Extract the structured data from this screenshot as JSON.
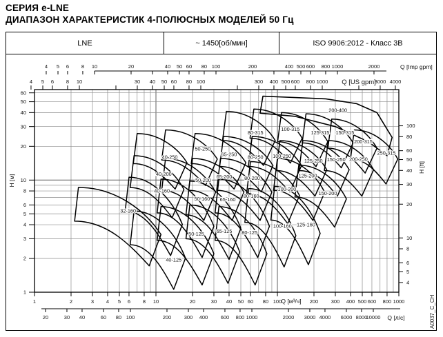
{
  "page": {
    "title_line1": "СЕРИЯ e-LNE",
    "title_line2": "ДИАПАЗОН ХАРАКТЕРИСТИК 4-ПОЛЮСНЫХ МОДЕЛЕЙ 50 Гц"
  },
  "header_table": {
    "series": "LNE",
    "speed": "~ 1450[об/мин]",
    "standard": "ISO 9906:2012 - Класс 3В"
  },
  "side_code": "A0037_C_CH",
  "chart_data": {
    "type": "area",
    "description": "Log-log composite range chart of pump model envelopes, H [м] vs Q [м³/ч]",
    "q_range": [
      1,
      1023
    ],
    "h_range": [
      1,
      64
    ],
    "grid": {
      "q_lines": [
        2,
        3,
        4,
        5,
        6,
        7,
        8,
        9,
        10,
        20,
        30,
        40,
        50,
        60,
        70,
        80,
        90,
        100,
        200,
        300,
        400,
        500,
        600,
        700,
        800,
        900,
        1000
      ],
      "h_lines": [
        2,
        3,
        4,
        5,
        6,
        7,
        8,
        9,
        10,
        20,
        30,
        40,
        50,
        60
      ]
    },
    "axes": {
      "q_imp": {
        "title": "Q [Imp gpm]",
        "labels": [
          4,
          5,
          6,
          8,
          10,
          20,
          40,
          50,
          60,
          80,
          100,
          200,
          400,
          500,
          600,
          800,
          1000,
          2000
        ],
        "unlabeled_ticks": [
          30,
          300
        ]
      },
      "q_us": {
        "title": "Q [US gpm]",
        "labels": [
          4,
          5,
          6,
          8,
          10,
          30,
          40,
          50,
          60,
          80,
          100,
          300,
          400,
          500,
          600,
          800,
          1000,
          3000,
          4000
        ],
        "unlabeled_ticks": [
          20,
          200,
          2000
        ]
      },
      "q_m3h": {
        "title": "Q [м³/ч]",
        "labels": [
          1,
          2,
          3,
          4,
          5,
          6,
          8,
          10,
          20,
          30,
          40,
          50,
          60,
          80,
          100,
          200,
          300,
          400,
          500,
          600,
          800,
          1000
        ],
        "unlabeled_ticks": []
      },
      "q_ls": {
        "title": "Q [л/с]",
        "labels": [
          20,
          30,
          40,
          60,
          80,
          100,
          200,
          300,
          400,
          600,
          800,
          1000,
          2000,
          3000,
          4000,
          6000,
          8000,
          10000
        ],
        "unlabeled_ticks": []
      },
      "h_m": {
        "title": "H [м]",
        "labels": [
          1,
          2,
          3,
          4,
          5,
          6,
          8,
          10,
          20,
          30,
          40,
          50,
          60
        ]
      },
      "h_ft": {
        "title": "H [ft]",
        "labels": [
          4,
          5,
          6,
          8,
          10,
          20,
          30,
          40,
          50,
          60,
          80,
          100
        ]
      }
    },
    "regions": [
      {
        "label": "32-160",
        "q": [
          2.3,
          11
        ],
        "hmax": 8.6,
        "fam": "160",
        "label_at": [
          5.9,
          5.3
        ]
      },
      {
        "label": "40-160",
        "q": [
          6,
          16.5
        ],
        "hmax": 10.6,
        "fam": "160",
        "label_at": [
          11.2,
          8.0
        ]
      },
      {
        "label": "50-160",
        "q": [
          11,
          30
        ],
        "hmax": 10.2,
        "fam": "160",
        "label_at": [
          24,
          6.8
        ]
      },
      {
        "label": "65-160",
        "q": [
          19,
          50
        ],
        "hmax": 9.8,
        "fam": "160",
        "label_at": [
          39,
          6.7
        ]
      },
      {
        "label": "80-160",
        "q": [
          33,
          86
        ],
        "hmax": 10.2,
        "fam": "160",
        "label_at": [
          61,
          7.2
        ]
      },
      {
        "label": "100-160",
        "q": [
          58,
          142
        ],
        "hmax": 8.4,
        "fam": "160",
        "label_at": [
          110,
          3.9
        ]
      },
      {
        "label": "125-160",
        "q": [
          95,
          225
        ],
        "hmax": 8.8,
        "fam": "160",
        "label_at": [
          172,
          4.0
        ]
      },
      {
        "label": "40-125",
        "q": [
          6.6,
          17.5
        ],
        "hmax": 5.3,
        "fam": "125",
        "label_at": [
          14,
          1.95
        ]
      },
      {
        "label": "50-125",
        "q": [
          11,
          30
        ],
        "hmax": 5.8,
        "fam": "125",
        "label_at": [
          21.5,
          3.3
        ]
      },
      {
        "label": "65-125",
        "q": [
          19,
          49
        ],
        "hmax": 6.0,
        "fam": "125",
        "label_at": [
          36.5,
          3.5
        ]
      },
      {
        "label": "80-125",
        "q": [
          33,
          82
        ],
        "hmax": 5.8,
        "fam": "125",
        "label_at": [
          59,
          3.4
        ]
      },
      {
        "label": "40-200",
        "q": [
          6.6,
          17
        ],
        "hmax": 16.5,
        "fam": "200",
        "label_at": [
          11.6,
          11.3
        ]
      },
      {
        "label": "50-200",
        "q": [
          12,
          31
        ],
        "hmax": 15.6,
        "fam": "200",
        "label_at": [
          24.5,
          10.0
        ]
      },
      {
        "label": "65-200",
        "q": [
          20,
          53
        ],
        "hmax": 15.6,
        "fam": "200",
        "label_at": [
          36.5,
          10.7
        ]
      },
      {
        "label": "80-200",
        "q": [
          34,
          90
        ],
        "hmax": 15.6,
        "fam": "200",
        "label_at": [
          62,
          10.4
        ]
      },
      {
        "label": "100-200",
        "q": [
          60,
          152
        ],
        "hmax": 14.6,
        "fam": "200",
        "label_at": [
          120,
          8.3
        ]
      },
      {
        "label": "125-200",
        "q": [
          100,
          245
        ],
        "hmax": 15.6,
        "fam": "200",
        "label_at": [
          178,
          10.9
        ]
      },
      {
        "label": "150-200",
        "q": [
          150,
          370
        ],
        "hmax": 13.6,
        "fam": "200",
        "label_at": [
          260,
          7.6
        ]
      },
      {
        "label": "40-250",
        "q": [
          7,
          18
        ],
        "hmax": 26,
        "fam": "250",
        "label_at": [
          13,
          16
        ]
      },
      {
        "label": "50-250",
        "q": [
          12,
          32
        ],
        "hmax": 28,
        "fam": "250",
        "label_at": [
          24.3,
          19
        ]
      },
      {
        "label": "65-250",
        "q": [
          21,
          55
        ],
        "hmax": 26,
        "fam": "250",
        "label_at": [
          40,
          17
        ]
      },
      {
        "label": "80-250",
        "q": [
          36,
          92
        ],
        "hmax": 24.5,
        "fam": "250",
        "label_at": [
          66,
          16
        ]
      },
      {
        "label": "100-250",
        "q": [
          62,
          158
        ],
        "hmax": 24.5,
        "fam": "250",
        "label_at": [
          109,
          16.4
        ]
      },
      {
        "label": "125-250",
        "q": [
          105,
          255
        ],
        "hmax": 22.5,
        "fam": "250",
        "label_at": [
          198,
          14.8
        ]
      },
      {
        "label": "150-250",
        "q": [
          162,
          390
        ],
        "hmax": 22.5,
        "fam": "250",
        "label_at": [
          305,
          15.2
        ]
      },
      {
        "label": "200-250",
        "q": [
          262,
          620
        ],
        "hmax": 22.5,
        "fam": "250",
        "label_at": [
          465,
          15.4
        ]
      },
      {
        "label": "80-315",
        "q": [
          38,
          96
        ],
        "hmax": 41,
        "fam": "315",
        "label_at": [
          66,
          26.5
        ]
      },
      {
        "label": "100-315",
        "q": [
          64,
          160
        ],
        "hmax": 43,
        "fam": "315",
        "label_at": [
          128,
          28.5
        ]
      },
      {
        "label": "125-315",
        "q": [
          108,
          260
        ],
        "hmax": 40,
        "fam": "315",
        "label_at": [
          225,
          26.5
        ]
      },
      {
        "label": "150-315",
        "q": [
          172,
          420
        ],
        "hmax": 39,
        "fam": "315",
        "label_at": [
          360,
          26.5
        ]
      },
      {
        "label": "200-315",
        "q": [
          280,
          660
        ],
        "hmax": 35,
        "fam": "315",
        "label_at": [
          510,
          22
        ]
      },
      {
        "label": "250-315",
        "q": [
          430,
          980
        ],
        "hmax": 28,
        "fam": "315",
        "label_at": [
          790,
          17.5
        ]
      }
    ],
    "regions_custom": [
      {
        "label": "200-400",
        "pts": [
          [
            76,
            56
          ],
          [
            250,
            53
          ],
          [
            450,
            48
          ],
          [
            660,
            40
          ],
          [
            880,
            24
          ],
          [
            800,
            16.5
          ],
          [
            560,
            22
          ],
          [
            300,
            30
          ],
          [
            140,
            37
          ],
          [
            72,
            39.5
          ]
        ],
        "label_at": [
          315,
          42
        ]
      }
    ],
    "colors": {
      "curve": "#000000",
      "grid_minor": "#8c8c8c",
      "grid_major": "#5f5f5f",
      "border": "#000000"
    }
  }
}
